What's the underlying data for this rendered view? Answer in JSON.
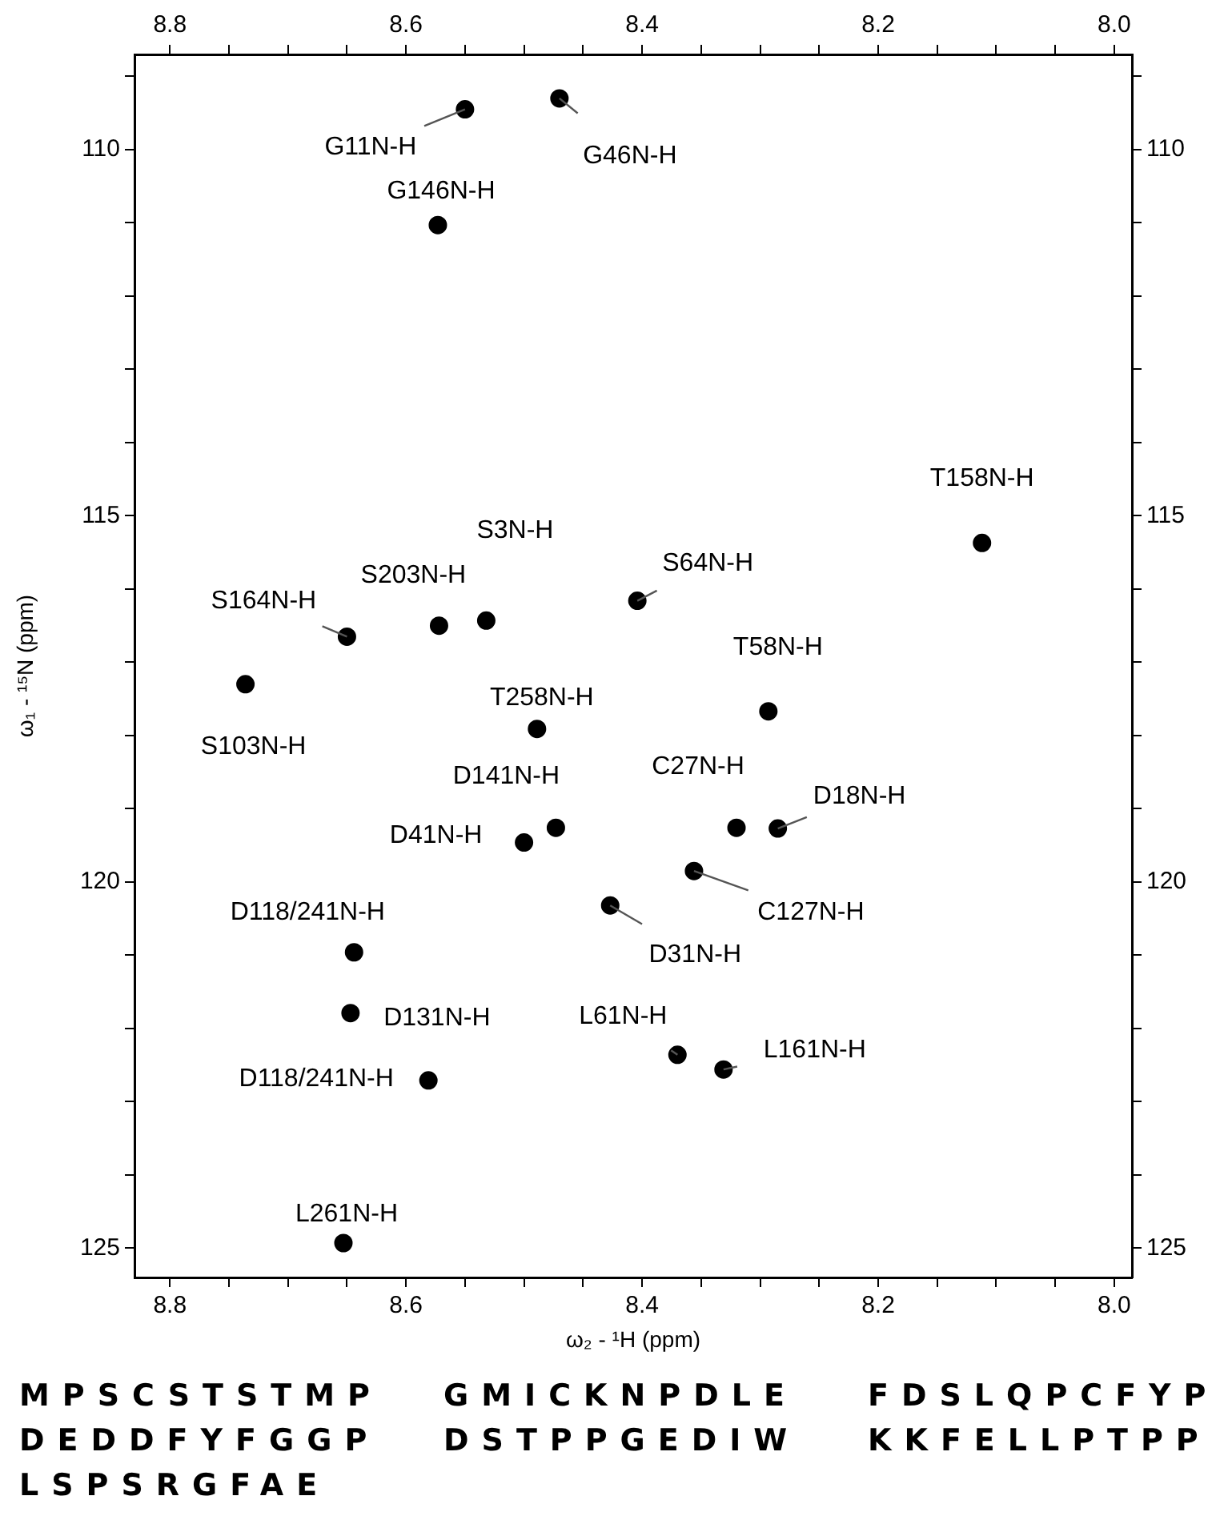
{
  "chart_data": {
    "type": "scatter",
    "xlabel": "ω₂ - ¹H (ppm)",
    "ylabel": "ω₁ - ¹⁵N (ppm)",
    "xlim": [
      8.83,
      7.985
    ],
    "ylim": [
      125.4,
      108.7
    ],
    "xticks": [
      8.8,
      {
        "value": 8.75,
        "label": null
      },
      {
        "value": 8.7,
        "label": null
      },
      {
        "value": 8.65,
        "label": null
      },
      8.6,
      {
        "value": 8.55,
        "label": null
      },
      {
        "value": 8.5,
        "label": null
      },
      {
        "value": 8.45,
        "label": null
      },
      8.4,
      {
        "value": 8.35,
        "label": null
      },
      {
        "value": 8.3,
        "label": null
      },
      {
        "value": 8.25,
        "label": null
      },
      8.2,
      {
        "value": 8.15,
        "label": null
      },
      {
        "value": 8.1,
        "label": null
      },
      {
        "value": 8.05,
        "label": null
      },
      {
        "value": 8.0,
        "label": "8.0"
      }
    ],
    "x2lim": [
      8.83,
      7.985
    ],
    "x2ticks": [
      8.8,
      {
        "value": 8.75,
        "label": null
      },
      {
        "value": 8.7,
        "label": null
      },
      {
        "value": 8.65,
        "label": null
      },
      8.6,
      {
        "value": 8.55,
        "label": null
      },
      {
        "value": 8.5,
        "label": null
      },
      {
        "value": 8.45,
        "label": null
      },
      8.4,
      {
        "value": 8.35,
        "label": null
      },
      {
        "value": 8.3,
        "label": null
      },
      {
        "value": 8.25,
        "label": null
      },
      8.2,
      {
        "value": 8.15,
        "label": null
      },
      {
        "value": 8.1,
        "label": null
      },
      {
        "value": 8.05,
        "label": null
      },
      {
        "value": 8.0,
        "label": "8.0"
      }
    ],
    "yticks": [
      {
        "value": 109,
        "label": null
      },
      110,
      {
        "value": 111,
        "label": null
      },
      {
        "value": 112,
        "label": null
      },
      {
        "value": 113,
        "label": null
      },
      {
        "value": 114,
        "label": null
      },
      115,
      {
        "value": 116,
        "label": null
      },
      {
        "value": 117,
        "label": null
      },
      {
        "value": 118,
        "label": null
      },
      {
        "value": 119,
        "label": null
      },
      120,
      {
        "value": 121,
        "label": null
      },
      {
        "value": 122,
        "label": null
      },
      {
        "value": 123,
        "label": null
      },
      {
        "value": 124,
        "label": null
      },
      125
    ],
    "y2lim": [
      125.4,
      108.7
    ],
    "y2ticks": [
      {
        "value": 109,
        "label": null
      },
      110,
      {
        "value": 111,
        "label": null
      },
      {
        "value": 112,
        "label": null
      },
      {
        "value": 113,
        "label": null
      },
      {
        "value": 114,
        "label": null
      },
      115,
      {
        "value": 116,
        "label": null
      },
      {
        "value": 117,
        "label": null
      },
      {
        "value": 118,
        "label": null
      },
      {
        "value": 119,
        "label": null
      },
      120,
      {
        "value": 121,
        "label": null
      },
      {
        "value": 122,
        "label": null
      },
      {
        "value": 123,
        "label": null
      },
      {
        "value": 124,
        "label": null
      },
      125
    ],
    "x": [
      8.55,
      8.47,
      8.573,
      8.112,
      8.532,
      8.404,
      8.65,
      8.572,
      8.293,
      8.736,
      8.489,
      8.473,
      8.5,
      8.32,
      8.285,
      8.356,
      8.427,
      8.644,
      8.647,
      8.581,
      8.37,
      8.331,
      8.653
    ],
    "series": [
      {
        "color": "#000000",
        "values": [
          109.45,
          109.3,
          111.03,
          115.37,
          116.43,
          116.16,
          116.65,
          116.5,
          117.67,
          117.3,
          117.91,
          119.26,
          119.46,
          119.26,
          119.27,
          119.85,
          120.32,
          120.96,
          121.79,
          122.71,
          122.36,
          122.56,
          124.93
        ]
      }
    ],
    "marker": "circle",
    "grid": false,
    "legend": false,
    "annotations": [
      {
        "text": "G11N-H",
        "x": 8.55,
        "y": 109.45
      },
      {
        "text": "G46N-H",
        "x": 8.47,
        "y": 109.3
      },
      {
        "text": "G146N-H",
        "x": 8.573,
        "y": 111.03
      },
      {
        "text": "T158N-H",
        "x": 8.112,
        "y": 115.37
      },
      {
        "text": "S3N-H",
        "x": 8.532,
        "y": 116.43
      },
      {
        "text": "S64N-H",
        "x": 8.404,
        "y": 116.16
      },
      {
        "text": "S164N-H",
        "x": 8.65,
        "y": 116.65
      },
      {
        "text": "S203N-H",
        "x": 8.572,
        "y": 116.5
      },
      {
        "text": "T58N-H",
        "x": 8.293,
        "y": 117.67
      },
      {
        "text": "S103N-H",
        "x": 8.736,
        "y": 117.3
      },
      {
        "text": "T258N-H",
        "x": 8.489,
        "y": 117.91
      },
      {
        "text": "D141N-H",
        "x": 8.473,
        "y": 119.26
      },
      {
        "text": "D41N-H",
        "x": 8.5,
        "y": 119.46
      },
      {
        "text": "C27N-H",
        "x": 8.32,
        "y": 119.26
      },
      {
        "text": "D18N-H",
        "x": 8.285,
        "y": 119.27
      },
      {
        "text": "C127N-H",
        "x": 8.356,
        "y": 119.85
      },
      {
        "text": "D31N-H",
        "x": 8.427,
        "y": 120.32
      },
      {
        "text": "D118/241N-H",
        "x": 8.644,
        "y": 120.96
      },
      {
        "text": "D131N-H",
        "x": 8.647,
        "y": 121.79
      },
      {
        "text": "D118/241N-H",
        "x": 8.581,
        "y": 122.71
      },
      {
        "text": "L61N-H",
        "x": 8.37,
        "y": 122.36
      },
      {
        "text": "L161N-H",
        "x": 8.331,
        "y": 122.56
      },
      {
        "text": "L261N-H",
        "x": 8.653,
        "y": 124.93
      },
      "MPSCSTSTMP",
      "GMICKNPDLE",
      "FDSLQPCFYP",
      "DEDDFYFGGP",
      "DSTPPGEDIW",
      "KKFELLPTPP",
      "LSPSRGFAE"
    ]
  }
}
